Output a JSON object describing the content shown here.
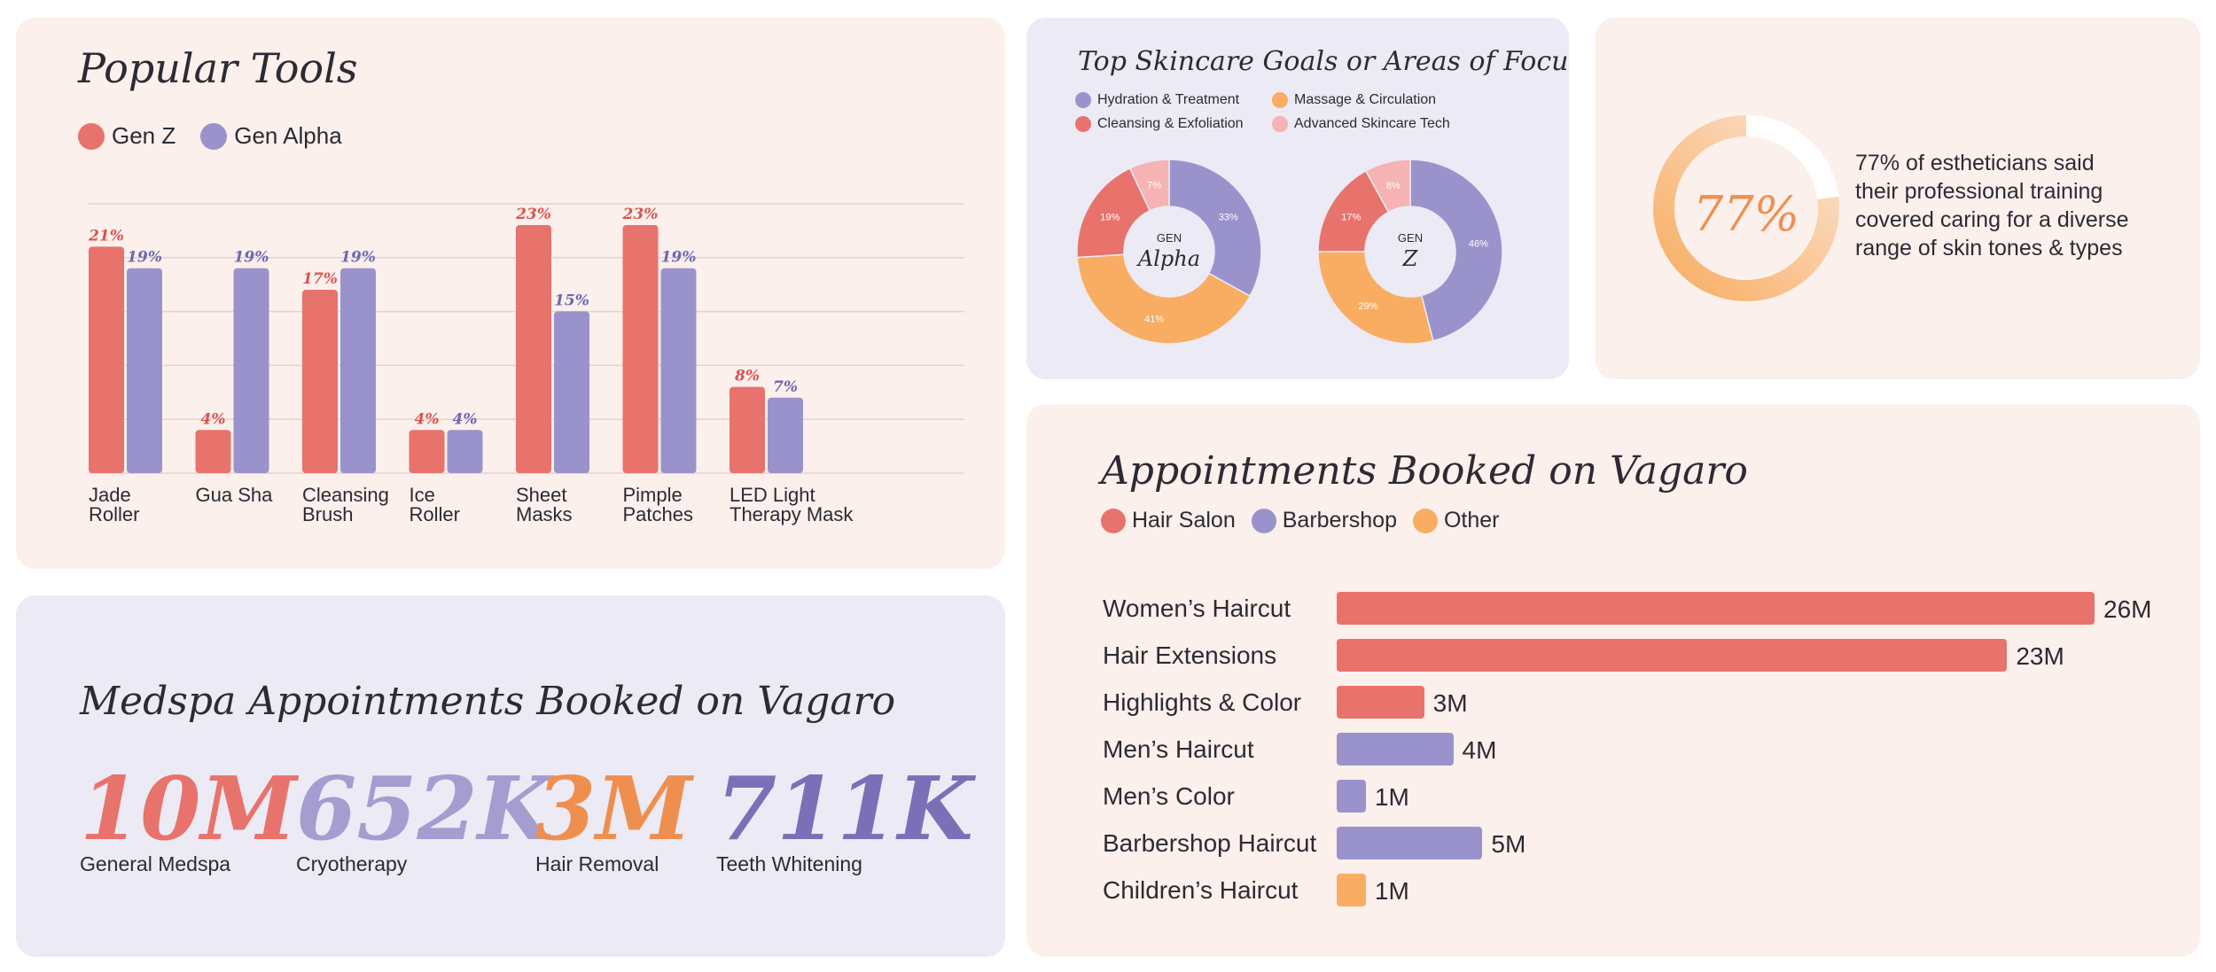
{
  "colors": {
    "genz": "#e8736c",
    "genalpha": "#9a93cb",
    "hair_salon": "#e8736c",
    "barbershop": "#9a93cb",
    "other": "#f8ad62",
    "hydration": "#9a93cb",
    "massage": "#f8ad62",
    "cleansing": "#e8736c",
    "advanced": "#f5b3b4",
    "stat_general": "#e8736c",
    "stat_cryo": "#a39dd0",
    "stat_hair": "#ef8f4f",
    "stat_teeth": "#7b70b8",
    "ring_light": "#fbe3d0",
    "ring_dark": "#f8ad62"
  },
  "popular_tools": {
    "title": "Popular Tools",
    "legend": [
      "Gen Z",
      "Gen Alpha"
    ],
    "categories_lines": [
      [
        "Jade",
        "Roller"
      ],
      [
        "Gua Sha",
        ""
      ],
      [
        "Cleansing",
        "Brush"
      ],
      [
        "Ice",
        "Roller"
      ],
      [
        "Sheet",
        "Masks"
      ],
      [
        "Pimple",
        "Patches"
      ],
      [
        "LED Light",
        "Therapy Mask"
      ]
    ]
  },
  "skincare": {
    "title": "Top Skincare Goals or Areas of Focus",
    "legend": [
      "Hydration & Treatment",
      "Massage & Circulation",
      "Cleansing & Exfoliation",
      "Advanced Skincare Tech"
    ],
    "donut_alpha": {
      "gen": "GEN",
      "name": "Alpha"
    },
    "donut_z": {
      "gen": "GEN",
      "name": "Z"
    }
  },
  "estheticians": {
    "percent_label": "77%",
    "percent": 77,
    "text_lines": [
      "77% of estheticians said",
      "their professional training",
      "covered caring for a diverse",
      "range of skin tones & types"
    ]
  },
  "medspa": {
    "title": "Medspa Appointments Booked on Vagaro",
    "stats": [
      {
        "value": "10M",
        "label": "General Medspa"
      },
      {
        "value": "652K",
        "label": "Cryotherapy"
      },
      {
        "value": "3M",
        "label": "Hair Removal"
      },
      {
        "value": "711K",
        "label": "Teeth Whitening"
      }
    ]
  },
  "appointments": {
    "title": "Appointments Booked on Vagaro",
    "legend": [
      "Hair Salon",
      "Barbershop",
      "Other"
    ]
  },
  "chart_data": [
    {
      "type": "bar",
      "title": "Popular Tools",
      "categories": [
        "Jade Roller",
        "Gua Sha",
        "Cleansing Brush",
        "Ice Roller",
        "Sheet Masks",
        "Pimple Patches",
        "LED Light Therapy Mask"
      ],
      "series": [
        {
          "name": "Gen Z",
          "values": [
            21,
            4,
            17,
            4,
            23,
            23,
            8
          ],
          "labels": [
            "21%",
            "4%",
            "17%",
            "4%",
            "23%",
            "23%",
            "8%"
          ]
        },
        {
          "name": "Gen Alpha",
          "values": [
            19,
            19,
            19,
            4,
            15,
            19,
            7
          ],
          "labels": [
            "19%",
            "19%",
            "19%",
            "4%",
            "15%",
            "19%",
            "7%"
          ]
        }
      ],
      "ylim": [
        0,
        25
      ],
      "grid": true
    },
    {
      "type": "pie",
      "title": "Gen Alpha",
      "categories": [
        "Hydration & Treatment",
        "Massage & Circulation",
        "Cleansing & Exfoliation",
        "Advanced Skincare Tech"
      ],
      "values": [
        33,
        41,
        19,
        7
      ],
      "labels": [
        "33%",
        "41%",
        "19%",
        "7%"
      ]
    },
    {
      "type": "pie",
      "title": "Gen Z",
      "categories": [
        "Hydration & Treatment",
        "Massage & Circulation",
        "Cleansing & Exfoliation",
        "Advanced Skincare Tech"
      ],
      "values": [
        46,
        29,
        17,
        8
      ],
      "labels": [
        "46%",
        "29%",
        "17%",
        "8%"
      ]
    },
    {
      "type": "bar",
      "orientation": "horizontal",
      "title": "Appointments Booked on Vagaro",
      "categories": [
        "Women’s Haircut",
        "Hair Extensions",
        "Highlights & Color",
        "Men’s Haircut",
        "Men’s Color",
        "Barbershop Haircut",
        "Children’s Haircut"
      ],
      "values": [
        26,
        23,
        3,
        4,
        1,
        5,
        1
      ],
      "value_labels": [
        "26M",
        "23M",
        "3M",
        "4M",
        "1M",
        "5M",
        "1M"
      ],
      "groups": [
        "Hair Salon",
        "Hair Salon",
        "Hair Salon",
        "Barbershop",
        "Barbershop",
        "Barbershop",
        "Other"
      ],
      "unit": "M"
    }
  ]
}
